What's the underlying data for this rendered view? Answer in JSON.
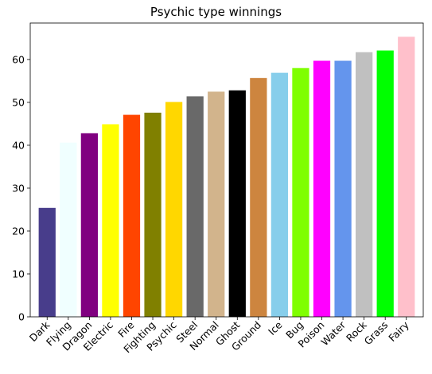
{
  "chart_data": {
    "type": "bar",
    "title": "Psychic type winnings",
    "xlabel": "",
    "ylabel": "",
    "ylim": [
      0,
      68.5
    ],
    "yticks": [
      0,
      10,
      20,
      30,
      40,
      50,
      60
    ],
    "grid": false,
    "legend": "none",
    "categories": [
      "Dark",
      "Flying",
      "Dragon",
      "Electric",
      "Fire",
      "Fighting",
      "Psychic",
      "Steel",
      "Normal",
      "Ghost",
      "Ground",
      "Ice",
      "Bug",
      "Poison",
      "Water",
      "Rock",
      "Grass",
      "Fairy"
    ],
    "values": [
      25.4,
      40.6,
      42.8,
      44.9,
      47.1,
      47.6,
      50.1,
      51.4,
      52.5,
      52.8,
      55.7,
      56.9,
      58.0,
      59.7,
      59.7,
      61.7,
      62.1,
      65.3
    ],
    "colors": [
      "#483D8B",
      "#F0FFFF",
      "#800080",
      "#FFFF00",
      "#FF4500",
      "#808000",
      "#FFD700",
      "#696969",
      "#D2B48C",
      "#000000",
      "#CD853F",
      "#87CEEB",
      "#7FFF00",
      "#FF00FF",
      "#6495ED",
      "#C0C0C0",
      "#00FF00",
      "#FFC0CB"
    ]
  }
}
